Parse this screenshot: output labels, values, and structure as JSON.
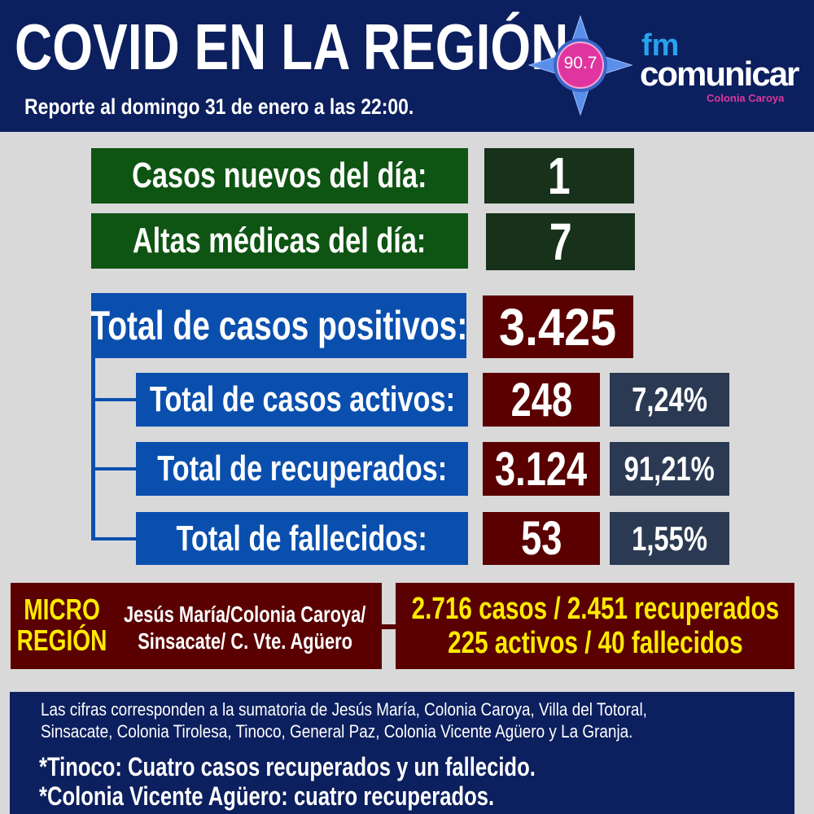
{
  "header": {
    "title": "COVID EN LA REGIÓN",
    "subtitle": "Reporte al domingo 31 de enero a las 22:00."
  },
  "logo": {
    "frequency": "90.7",
    "brand_top": "fm",
    "brand_main": "comunicar",
    "brand_sub": "Colonia Caroya"
  },
  "daily": [
    {
      "label": "Casos nuevos del día:",
      "value": "1"
    },
    {
      "label": "Altas médicas del día:",
      "value": "7"
    }
  ],
  "total": {
    "label": "Total de casos positivos:",
    "value": "3.425"
  },
  "breakdown": [
    {
      "label": "Total de casos activos:",
      "value": "248",
      "percent": "7,24%"
    },
    {
      "label": "Total de recuperados:",
      "value": "3.124",
      "percent": "91,21%"
    },
    {
      "label": "Total de fallecidos:",
      "value": "53",
      "percent": "1,55%"
    }
  ],
  "micro": {
    "title_line1": "MICRO",
    "title_line2": "REGIÓN",
    "towns_line1": "Jesús María/Colonia Caroya/",
    "towns_line2": "Sinsacate/ C. Vte. Agüero",
    "stats_line1": "2.716 casos / 2.451 recuperados",
    "stats_line2": "225 activos  / 40 fallecidos"
  },
  "footer": {
    "note_line1": "Las cifras corresponden a la sumatoria de Jesús María, Colonia Caroya, Villa del Totoral,",
    "note_line2": "Sinsacate, Colonia Tirolesa, Tinoco, General Paz, Colonia Vicente Agüero  y La Granja.",
    "remark1": "*Tinoco: Cuatro casos recuperados y un fallecido.",
    "remark2": "*Colonia Vicente Agüero: cuatro recuperados."
  },
  "colors": {
    "navy": "#0c1f5e",
    "green": "#0e5412",
    "blue": "#0a4fae",
    "maroon": "#5a0000",
    "slate": "#2b3a52",
    "yellow": "#ffeb00",
    "pink": "#e0359e"
  }
}
